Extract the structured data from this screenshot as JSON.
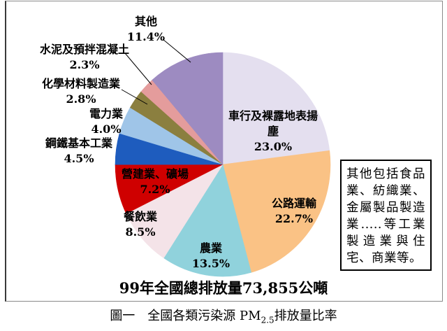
{
  "chart_data": {
    "type": "pie",
    "title": "",
    "direction": "clockwise",
    "start_angle_deg": 0,
    "total_label": "99年全國總排放量73,855公噸",
    "slices": [
      {
        "key": "vehicle-dust",
        "label": "車行及裸露地表揚塵",
        "value": 23.0,
        "pct_text": "23.0%",
        "color": "#E4DFEF"
      },
      {
        "key": "road-transport",
        "label": "公路運輸",
        "value": 22.7,
        "pct_text": "22.7%",
        "color": "#FAC285"
      },
      {
        "key": "agriculture",
        "label": "農業",
        "value": 13.5,
        "pct_text": "13.5%",
        "color": "#90D2DC"
      },
      {
        "key": "restaurants",
        "label": "餐飲業",
        "value": 8.5,
        "pct_text": "8.5%",
        "color": "#F4E3E8"
      },
      {
        "key": "construction-mining",
        "label": "營建業、礦場",
        "value": 7.2,
        "pct_text": "7.2%",
        "color": "#CF0000"
      },
      {
        "key": "steel-industry",
        "label": "鋼鐵基本工業",
        "value": 4.5,
        "pct_text": "4.5%",
        "color": "#1E5CBE"
      },
      {
        "key": "power-industry",
        "label": "電力業",
        "value": 4.0,
        "pct_text": "4.0%",
        "color": "#9FC5E8"
      },
      {
        "key": "chemical-materials",
        "label": "化學材料製造業",
        "value": 2.8,
        "pct_text": "2.8%",
        "color": "#8B7F3F"
      },
      {
        "key": "cement-concrete",
        "label": "水泥及預拌混凝土",
        "value": 2.3,
        "pct_text": "2.3%",
        "color": "#E49C9C"
      },
      {
        "key": "other",
        "label": "其他",
        "value": 11.4,
        "pct_text": "11.4%",
        "color": "#9D8BC1"
      }
    ]
  },
  "labels": {
    "other": {
      "name": "其他",
      "pct": "11.4%"
    },
    "cement": {
      "name": "水泥及預拌混凝土",
      "pct": "2.3%"
    },
    "chemical": {
      "name": "化學材料製造業",
      "pct": "2.8%"
    },
    "power": {
      "name": "電力業",
      "pct": "4.0%"
    },
    "steel": {
      "name": "鋼鐵基本工業",
      "pct": "4.5%"
    },
    "construction": {
      "name": "營建業、礦場",
      "pct": "7.2%"
    },
    "restaurant": {
      "name": "餐飲業",
      "pct": "8.5%"
    },
    "agriculture": {
      "name": "農業",
      "pct": "13.5%"
    },
    "road": {
      "name": "公路運輸",
      "pct": "22.7%"
    },
    "vehicle": {
      "line1": "車行及裸露地表揚",
      "line2": "塵",
      "pct": "23.0%"
    }
  },
  "total_label": "99年全國總排放量73,855公噸",
  "annotation_box": {
    "text": "其他包括食品業、紡織業、金屬製品製造業.....等工業製造業與住宅、商業等。"
  },
  "caption": {
    "prefix": "圖一　全國各類污染源 PM",
    "subscript": "2.5",
    "suffix": "排放量比率"
  }
}
